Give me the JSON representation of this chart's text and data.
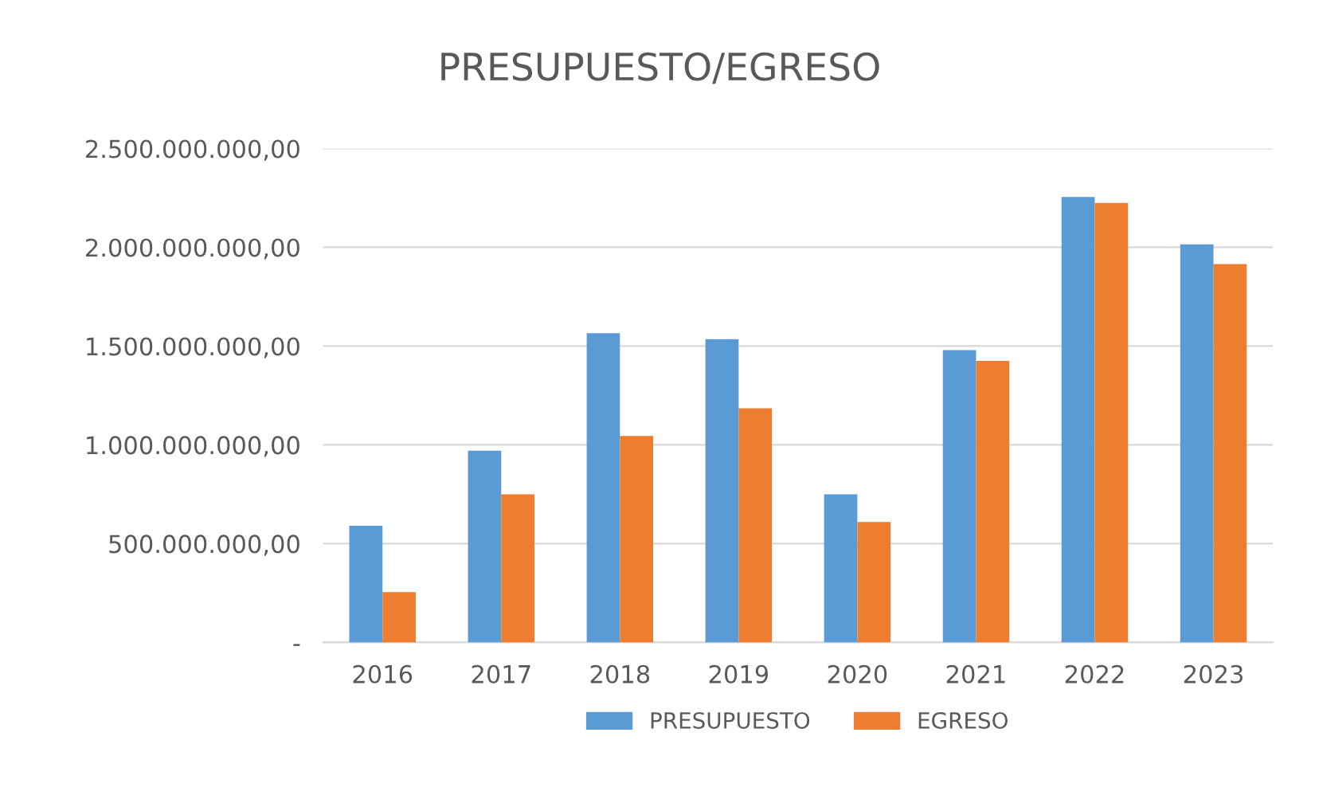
{
  "chart_data": {
    "type": "bar",
    "title": "PRESUPUESTO/EGRESO",
    "categories": [
      "2016",
      "2017",
      "2018",
      "2019",
      "2020",
      "2021",
      "2022",
      "2023"
    ],
    "series": [
      {
        "name": "PRESUPUESTO",
        "color": "#5b9bd5",
        "values": [
          590000000,
          970000000,
          1565000000,
          1535000000,
          750000000,
          1480000000,
          2255000000,
          2015000000
        ]
      },
      {
        "name": "EGRESO",
        "color": "#ed7d31",
        "values": [
          255000000,
          750000000,
          1045000000,
          1185000000,
          610000000,
          1425000000,
          2225000000,
          1915000000
        ]
      }
    ],
    "ylim": [
      0,
      2500000000
    ],
    "yticks": [
      {
        "value": 0,
        "label": "-"
      },
      {
        "value": 500000000,
        "label": "500.000.000,00"
      },
      {
        "value": 1000000000,
        "label": "1.000.000.000,00"
      },
      {
        "value": 1500000000,
        "label": "1.500.000.000,00"
      },
      {
        "value": 2000000000,
        "label": "2.000.000.000,00"
      },
      {
        "value": 2500000000,
        "label": "2.500.000.000,00"
      }
    ],
    "grid": "y",
    "legend": "bottom"
  }
}
